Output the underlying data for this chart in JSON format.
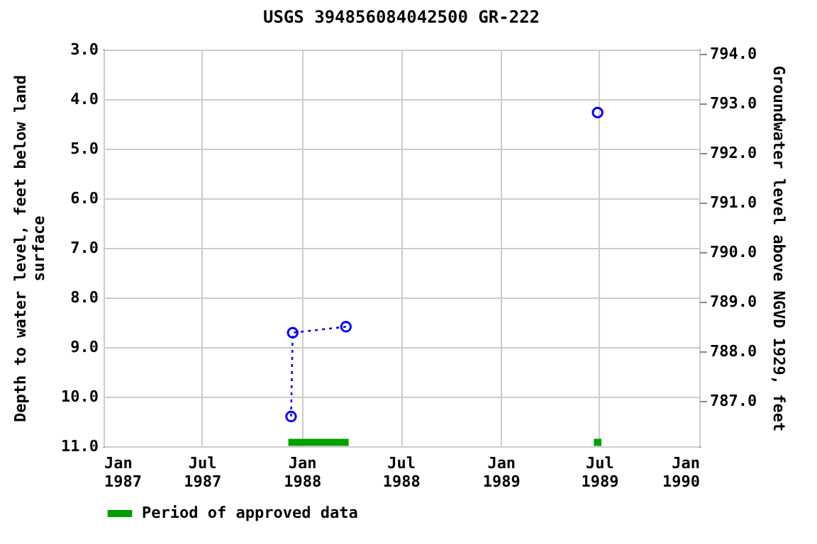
{
  "chart_data": {
    "type": "line",
    "title": "USGS 394856084042500 GR-222",
    "ylabel": "Depth to water level, feet below land surface",
    "y2label": "Groundwater level above NGVD 1929, feet",
    "series": [
      {
        "color": "#0000ff",
        "x": [
          "1987-12-12",
          "1987-12-15",
          "1988-03-22",
          "1988-10-01",
          "1989-06-28"
        ],
        "values": [
          10.4,
          8.71,
          8.59,
          null,
          4.27
        ]
      },
      {
        "name": "Period of approved data",
        "color": "#00a000",
        "marker": "none",
        "line_style": "solid",
        "x": [
          "1987-12-07",
          "1988-03-27",
          "1988-10-01",
          "1989-06-21",
          "1989-07-05"
        ],
        "values": [
          10.92,
          10.92,
          null,
          10.92,
          10.92
        ]
      }
    ],
    "xlim": [
      "1987-01-01",
      "1990-01-01"
    ],
    "xticks": [
      {
        "value": "1987-01-01",
        "label": "Jan 1987"
      },
      {
        "value": "1987-07-01",
        "label": "Jul 1987"
      },
      {
        "value": "1988-01-01",
        "label": "Jan 1988"
      },
      {
        "value": "1988-07-01",
        "label": "Jul 1988"
      },
      {
        "value": "1989-01-01",
        "label": "Jan 1989"
      },
      {
        "value": "1989-07-01",
        "label": "Jul 1989"
      },
      {
        "value": "1990-01-01",
        "label": "Jan 1990"
      }
    ],
    "ylim": [
      11,
      3
    ],
    "yticks": [
      {
        "value": 3,
        "label": "3.0"
      },
      {
        "value": 4,
        "label": "4.0"
      },
      {
        "value": 5,
        "label": "5.0"
      },
      {
        "value": 6,
        "label": "6.0"
      },
      {
        "value": 7,
        "label": "7.0"
      },
      {
        "value": 8,
        "label": "8.0"
      },
      {
        "value": 9,
        "label": "9.0"
      },
      {
        "value": 10,
        "label": "10.0"
      },
      {
        "value": 11,
        "label": "11.0"
      }
    ],
    "y2lim": [
      786.08,
      794.08
    ],
    "y2ticks": [
      {
        "value": 787,
        "label": "787.0"
      },
      {
        "value": 788,
        "label": "788.0"
      },
      {
        "value": 789,
        "label": "789.0"
      },
      {
        "value": 790,
        "label": "790.0"
      },
      {
        "value": 791,
        "label": "791.0"
      },
      {
        "value": 792,
        "label": "792.0"
      },
      {
        "value": 793,
        "label": "793.0"
      },
      {
        "value": 794,
        "label": "794.0"
      }
    ],
    "grid": true,
    "legend": "bottom",
    "marker": "circle",
    "line_style": "dotted"
  }
}
